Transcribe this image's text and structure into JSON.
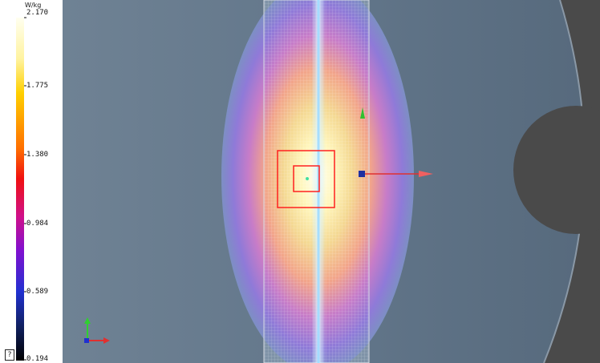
{
  "color_scale": {
    "unit": "W/kg",
    "ticks": [
      "2.170",
      "1.775",
      "1.380",
      "0.984",
      "0.589",
      "0.194"
    ]
  },
  "help": {
    "label": "?"
  },
  "icons": {
    "axis_gizmo": "xyz-axis-icon",
    "probe_handle": "translate-arrows-icon"
  },
  "colors": {
    "background_gray": "#5f7183",
    "phantom_dark": "#4a4a4a",
    "selection_box": "#ff2020",
    "arrow_x": "#e03030",
    "arrow_y": "#30c030"
  }
}
